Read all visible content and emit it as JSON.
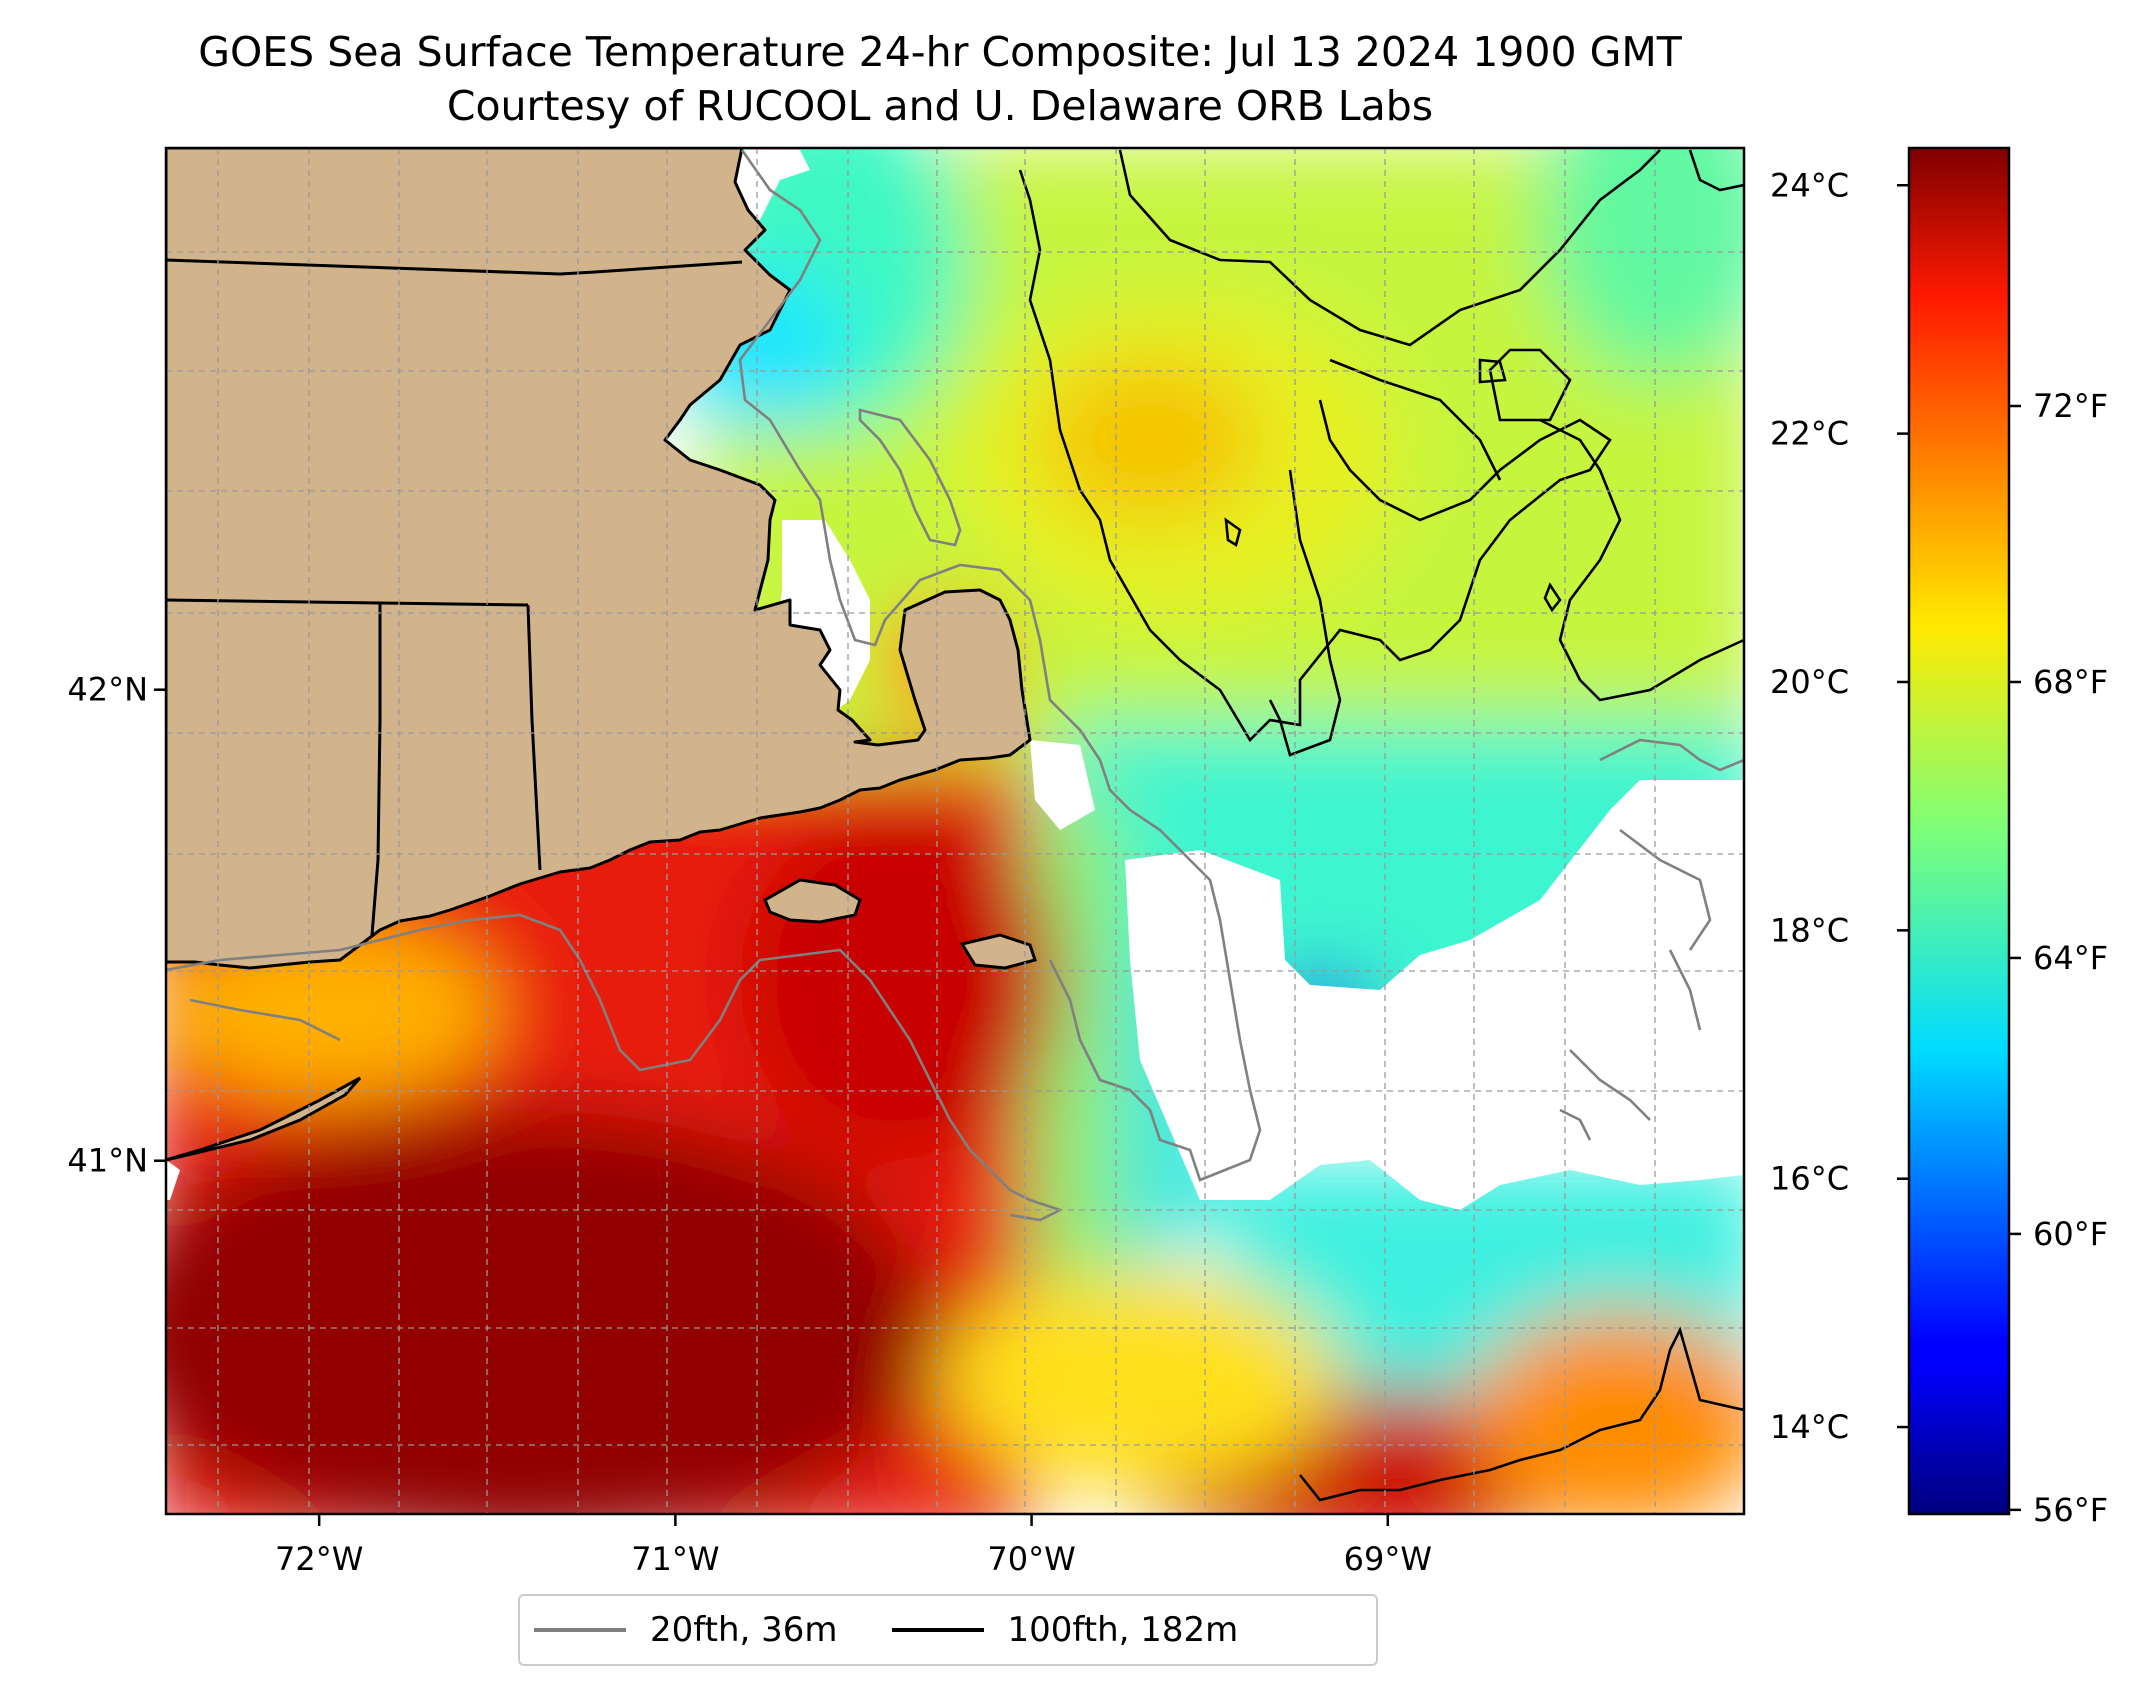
{
  "title": {
    "line1": "GOES Sea Surface Temperature 24-hr Composite: Jul 13 2024 1900 GMT",
    "line2": "Courtesy of RUCOOL and U. Delaware ORB Labs"
  },
  "map": {
    "extent": {
      "lon": [
        -72.43,
        -68.0
      ],
      "lat": [
        40.25,
        43.15
      ]
    },
    "lon_ticks": [
      {
        "value": -72,
        "label": "72°W"
      },
      {
        "value": -71,
        "label": "71°W"
      },
      {
        "value": -70,
        "label": "70°W"
      },
      {
        "value": -69,
        "label": "69°W"
      }
    ],
    "lat_ticks": [
      {
        "value": 42,
        "label": "42°N"
      },
      {
        "value": 41,
        "label": "41°N"
      }
    ],
    "gridlines": "dashed",
    "land_color": "#d2b48c",
    "no_data_color": "#ffffff"
  },
  "colorbar": {
    "colormap": "jet",
    "range_c": [
      13.3,
      24.3
    ],
    "celsius_ticks": [
      {
        "value": 24,
        "label": "24°C"
      },
      {
        "value": 22,
        "label": "22°C"
      },
      {
        "value": 20,
        "label": "20°C"
      },
      {
        "value": 18,
        "label": "18°C"
      },
      {
        "value": 16,
        "label": "16°C"
      },
      {
        "value": 14,
        "label": "14°C"
      }
    ],
    "fahrenheit_ticks": [
      {
        "value": 72,
        "label": "72°F"
      },
      {
        "value": 68,
        "label": "68°F"
      },
      {
        "value": 64,
        "label": "64°F"
      },
      {
        "value": 60,
        "label": "60°F"
      },
      {
        "value": 56,
        "label": "56°F"
      }
    ]
  },
  "legend": {
    "placement": "bottom-center",
    "items": [
      {
        "label": "20fth, 36m",
        "color": "#808080"
      },
      {
        "label": "100fth, 182m",
        "color": "#000000"
      }
    ]
  }
}
